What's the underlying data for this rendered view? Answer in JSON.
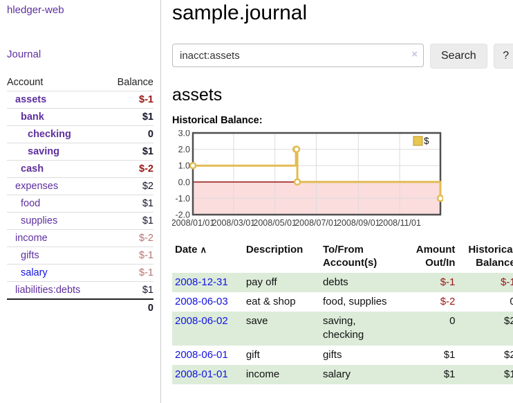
{
  "app": {
    "brand": "hledger-web",
    "nav": {
      "journal": "Journal"
    }
  },
  "sidebar": {
    "columns": {
      "account": "Account",
      "balance": "Balance"
    },
    "accounts": [
      {
        "name": "assets",
        "balance": "$-1",
        "level": 1,
        "bold": true,
        "negative": true,
        "muted": false
      },
      {
        "name": "bank",
        "balance": "$1",
        "level": 2,
        "bold": true,
        "negative": false,
        "muted": false
      },
      {
        "name": "checking",
        "balance": "0",
        "level": 3,
        "bold": true,
        "negative": false,
        "muted": false
      },
      {
        "name": "saving",
        "balance": "$1",
        "level": 3,
        "bold": true,
        "negative": false,
        "muted": false
      },
      {
        "name": "cash",
        "balance": "$-2",
        "level": 2,
        "bold": true,
        "negative": true,
        "muted": false
      },
      {
        "name": "expenses",
        "balance": "$2",
        "level": 1,
        "bold": false,
        "negative": false,
        "muted": false
      },
      {
        "name": "food",
        "balance": "$1",
        "level": 2,
        "bold": false,
        "negative": false,
        "muted": false
      },
      {
        "name": "supplies",
        "balance": "$1",
        "level": 2,
        "bold": false,
        "negative": false,
        "muted": false
      },
      {
        "name": "income",
        "balance": "$-2",
        "level": 1,
        "bold": false,
        "negative": true,
        "muted": true
      },
      {
        "name": "gifts",
        "balance": "$-1",
        "level": 2,
        "bold": false,
        "negative": true,
        "muted": true
      },
      {
        "name": "salary",
        "balance": "$-1",
        "level": 2,
        "bold": false,
        "negative": true,
        "muted": true,
        "link_blue": true
      },
      {
        "name": "liabilities:debts",
        "balance": "$1",
        "level": 1,
        "bold": false,
        "negative": false,
        "muted": false
      }
    ],
    "total": "0"
  },
  "header": {
    "title": "sample.journal"
  },
  "search": {
    "value": "inacct:assets",
    "clear": "×",
    "submit": "Search",
    "help": "?"
  },
  "account_page": {
    "title": "assets",
    "chart_heading": "Historical Balance:"
  },
  "chart_data": {
    "type": "line",
    "title": "Historical Balance:",
    "legend": {
      "label": "$",
      "position": "top-right"
    },
    "x_start": "2008-01-01",
    "x_end": "2008-12-31",
    "points": [
      {
        "date": "2008-01-01",
        "value": 1
      },
      {
        "date": "2008-06-01",
        "value": 2
      },
      {
        "date": "2008-06-02",
        "value": 2
      },
      {
        "date": "2008-06-03",
        "value": 0
      },
      {
        "date": "2008-12-31",
        "value": -1
      }
    ],
    "x_tick_labels": [
      "2008/01/01",
      "2008/03/01",
      "2008/05/01",
      "2008/07/01",
      "2008/09/01",
      "2008/11/01"
    ],
    "y_ticks": [
      "3.0",
      "2.0",
      "1.0",
      "0.0",
      "-1.0",
      "-2.0"
    ],
    "ylim": [
      -2,
      3
    ],
    "grid": true,
    "colors": {
      "line": "#e2bc53",
      "marker_fill": "#ffffff",
      "negative_fill": "#fbdddd",
      "zero_line": "#8b0000",
      "grid": "#dcdcdc",
      "border": "#4f4f4f",
      "legend_fill": "#e9c64f",
      "legend_border": "#b89530",
      "tick_text": "#3c3c3c"
    }
  },
  "register_table": {
    "headers": {
      "date": "Date",
      "sort_icon": "∧",
      "description": "Description",
      "tofrom_line1": "To/From",
      "tofrom_line2": "Account(s)",
      "amount_line1": "Amount",
      "amount_line2": "Out/In",
      "hist_line1": "Historical",
      "hist_line2": "Balance"
    },
    "rows": [
      {
        "date": "2008-12-31",
        "description": "pay off",
        "accounts": "debts",
        "amount": "$-1",
        "amount_negative": true,
        "balance": "$-1",
        "balance_negative": true,
        "shaded": true
      },
      {
        "date": "2008-06-03",
        "description": "eat & shop",
        "accounts": "food, supplies",
        "amount": "$-2",
        "amount_negative": true,
        "balance": "0",
        "balance_negative": false,
        "shaded": false
      },
      {
        "date": "2008-06-02",
        "description": "save",
        "accounts": "saving, checking",
        "amount": "0",
        "amount_negative": false,
        "balance": "$2",
        "balance_negative": false,
        "shaded": true
      },
      {
        "date": "2008-06-01",
        "description": "gift",
        "accounts": "gifts",
        "amount": "$1",
        "amount_negative": false,
        "balance": "$2",
        "balance_negative": false,
        "shaded": false
      },
      {
        "date": "2008-01-01",
        "description": "income",
        "accounts": "salary",
        "amount": "$1",
        "amount_negative": false,
        "balance": "$1",
        "balance_negative": false,
        "shaded": true
      }
    ]
  }
}
